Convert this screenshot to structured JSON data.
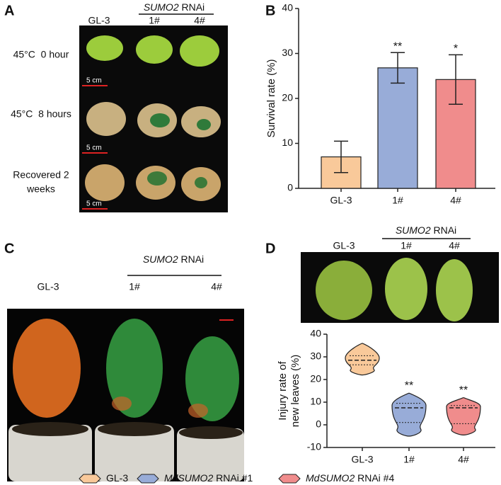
{
  "panel_labels": [
    "A",
    "B",
    "C",
    "D"
  ],
  "panel_a": {
    "columns": [
      "GL-3",
      "1#",
      "4#"
    ],
    "group": {
      "gene": "SUMO2",
      "text": "RNAi"
    },
    "rows": [
      [
        "45°C  0 hour"
      ],
      [
        "45°C  8 hours"
      ],
      [
        "Recovered 2",
        "weeks"
      ]
    ],
    "scale": [
      "5 cm",
      "5 cm",
      "5 cm"
    ]
  },
  "panel_c": {
    "columns": [
      "GL-3",
      "1#",
      "4#"
    ],
    "group": {
      "gene": "SUMO2",
      "text": "RNAi"
    }
  },
  "panel_d_photo": {
    "columns": [
      "GL-3",
      "1#",
      "4#"
    ],
    "group": {
      "gene": "SUMO2",
      "text": "RNAi"
    }
  },
  "chart_data": [
    {
      "type": "bar",
      "ylabel": "Survival rate (%)",
      "categories": [
        "GL-3",
        "1#",
        "4#"
      ],
      "values": [
        7,
        26.8,
        24.2
      ],
      "errors": [
        3.5,
        3.4,
        5.5
      ],
      "colors": [
        "#f9c99a",
        "#98acd8",
        "#f08c8c"
      ],
      "annotations": [
        "",
        "**",
        "*"
      ],
      "ylim": [
        0,
        40
      ],
      "yticks": [
        0,
        10,
        20,
        30,
        40
      ]
    },
    {
      "type": "violin",
      "ylabel": [
        "Injury rate of",
        "new leaves (%)"
      ],
      "categories": [
        "GL-3",
        "1#",
        "4#"
      ],
      "series": [
        {
          "name": "GL-3",
          "min": 22,
          "q1": 26.5,
          "median": 28.5,
          "q3": 30.5,
          "max": 36
        },
        {
          "name": "1#",
          "min": -5,
          "q1": 1,
          "median": 7.5,
          "q3": 9.5,
          "max": 14
        },
        {
          "name": "4#",
          "min": -4.5,
          "q1": 0.5,
          "median": 7.5,
          "q3": 8.5,
          "max": 12
        }
      ],
      "colors": [
        "#f9c99a",
        "#98acd8",
        "#f08c8c"
      ],
      "annotations": [
        "",
        "**",
        "**"
      ],
      "ylim": [
        -10,
        40
      ],
      "yticks": [
        -10,
        0,
        10,
        20,
        30,
        40
      ]
    }
  ],
  "legend": [
    {
      "text": "GL-3"
    },
    {
      "gene": "MdSUMO2",
      "text": "RNAi #1"
    },
    {
      "gene": "MdSUMO2",
      "text": "RNAi #4"
    }
  ]
}
